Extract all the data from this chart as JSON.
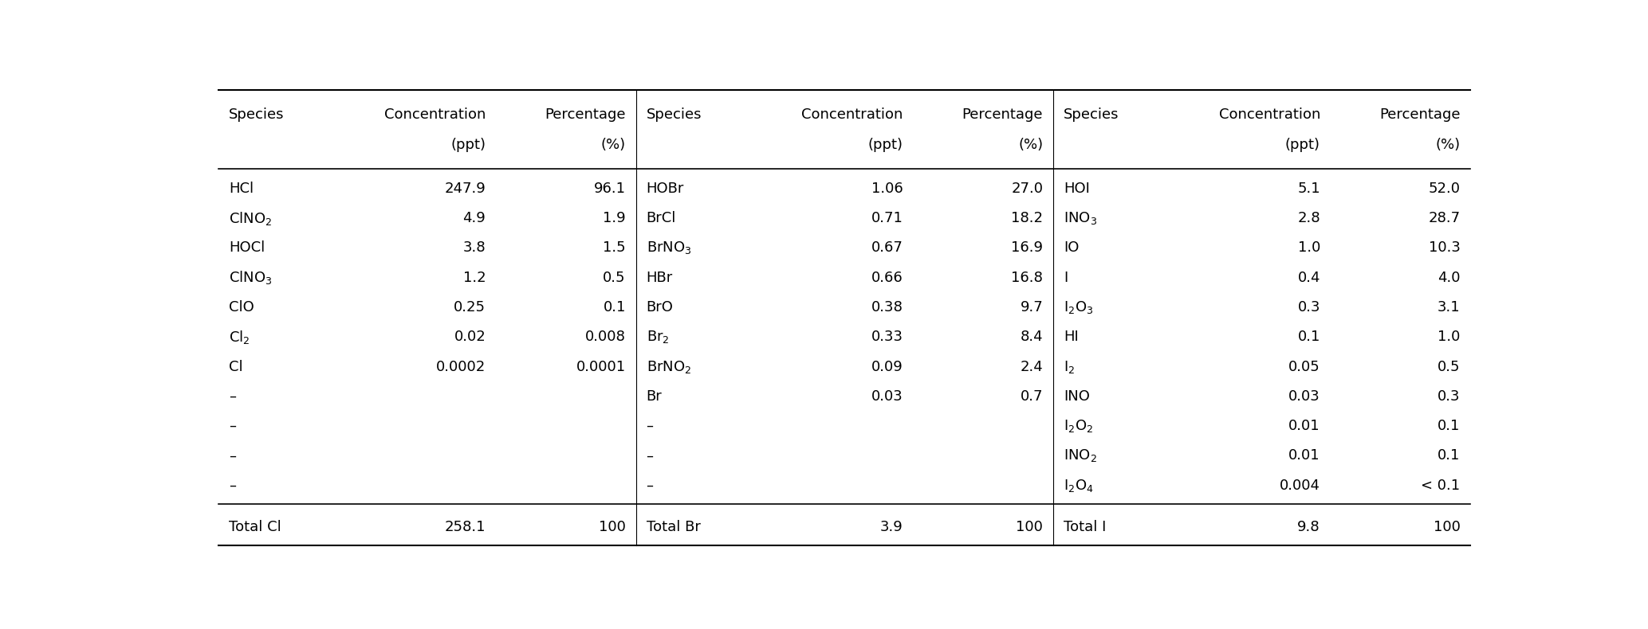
{
  "col1_data": [
    [
      "HCl",
      "247.9",
      "96.1"
    ],
    [
      "ClNO$_2$",
      "4.9",
      "1.9"
    ],
    [
      "HOCl",
      "3.8",
      "1.5"
    ],
    [
      "ClNO$_3$",
      "1.2",
      "0.5"
    ],
    [
      "ClO",
      "0.25",
      "0.1"
    ],
    [
      "Cl$_2$",
      "0.02",
      "0.008"
    ],
    [
      "Cl",
      "0.0002",
      "0.0001"
    ],
    [
      "–",
      "",
      ""
    ],
    [
      "–",
      "",
      ""
    ],
    [
      "–",
      "",
      ""
    ],
    [
      "–",
      "",
      ""
    ]
  ],
  "col2_data": [
    [
      "HOBr",
      "1.06",
      "27.0"
    ],
    [
      "BrCl",
      "0.71",
      "18.2"
    ],
    [
      "BrNO$_3$",
      "0.67",
      "16.9"
    ],
    [
      "HBr",
      "0.66",
      "16.8"
    ],
    [
      "BrO",
      "0.38",
      "9.7"
    ],
    [
      "Br$_2$",
      "0.33",
      "8.4"
    ],
    [
      "BrNO$_2$",
      "0.09",
      "2.4"
    ],
    [
      "Br",
      "0.03",
      "0.7"
    ],
    [
      "–",
      "",
      ""
    ],
    [
      "–",
      "",
      ""
    ],
    [
      "–",
      "",
      ""
    ]
  ],
  "col3_data": [
    [
      "HOI",
      "5.1",
      "52.0"
    ],
    [
      "INO$_3$",
      "2.8",
      "28.7"
    ],
    [
      "IO",
      "1.0",
      "10.3"
    ],
    [
      "I",
      "0.4",
      "4.0"
    ],
    [
      "I$_2$O$_3$",
      "0.3",
      "3.1"
    ],
    [
      "HI",
      "0.1",
      "1.0"
    ],
    [
      "I$_2$",
      "0.05",
      "0.5"
    ],
    [
      "INO",
      "0.03",
      "0.3"
    ],
    [
      "I$_2$O$_2$",
      "0.01",
      "0.1"
    ],
    [
      "INO$_2$",
      "0.01",
      "0.1"
    ],
    [
      "I$_2$O$_4$",
      "0.004",
      "< 0.1"
    ]
  ],
  "totals": [
    [
      "Total Cl",
      "258.1",
      "100"
    ],
    [
      "Total Br",
      "3.9",
      "100"
    ],
    [
      "Total I",
      "9.8",
      "100"
    ]
  ],
  "fig_width": 20.67,
  "fig_height": 7.9,
  "background_color": "#ffffff",
  "text_color": "#000000",
  "header_fontsize": 13,
  "cell_fontsize": 13,
  "line_color": "#000000"
}
